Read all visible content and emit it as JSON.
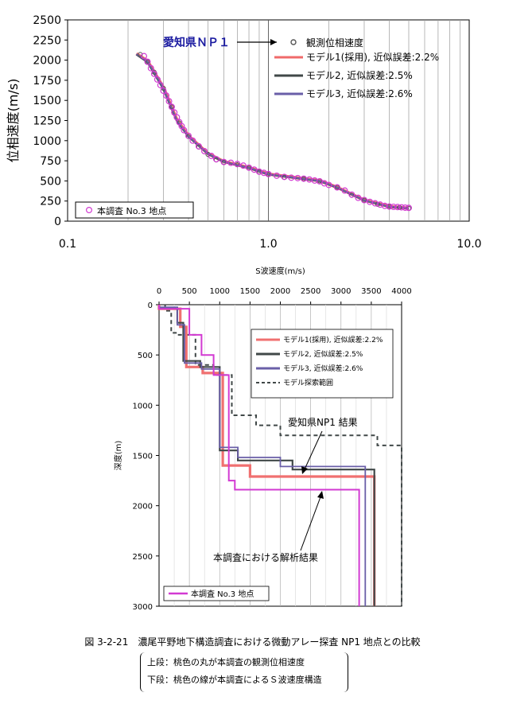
{
  "chart_data": [
    {
      "type": "scatter",
      "title": "",
      "xlabel": "",
      "ylabel": "位相速度(m/s)",
      "xscale": "log",
      "xlim": [
        0.1,
        10.0
      ],
      "ylim": [
        0,
        2500
      ],
      "x_ticks": [
        {
          "v": 0.1,
          "label": "0.1"
        },
        {
          "v": 1.0,
          "label": "1.0"
        },
        {
          "v": 10.0,
          "label": "10.0"
        }
      ],
      "y_ticks": [
        0,
        250,
        500,
        750,
        1000,
        1250,
        1500,
        1750,
        2000,
        2250,
        2500
      ],
      "grid": "vertical",
      "legend_position": "top-right",
      "series": [
        {
          "name": "観測位相速度",
          "kind": "points",
          "color": "#555555",
          "points": [
            [
              0.23,
              2070
            ],
            [
              0.25,
              1980
            ],
            [
              0.27,
              1850
            ],
            [
              0.3,
              1650
            ],
            [
              0.33,
              1420
            ],
            [
              0.36,
              1220
            ],
            [
              0.4,
              1050
            ],
            [
              0.45,
              920
            ],
            [
              0.5,
              830
            ],
            [
              0.55,
              760
            ],
            [
              0.6,
              730
            ],
            [
              0.7,
              700
            ],
            [
              0.8,
              660
            ],
            [
              0.9,
              610
            ],
            [
              1.0,
              580
            ],
            [
              1.2,
              545
            ],
            [
              1.5,
              525
            ],
            [
              1.8,
              500
            ],
            [
              2.2,
              420
            ],
            [
              2.6,
              320
            ],
            [
              3.0,
              260
            ],
            [
              3.5,
              210
            ],
            [
              4.0,
              180
            ],
            [
              4.5,
              170
            ],
            [
              5.0,
              160
            ]
          ]
        },
        {
          "name": "モデル1(採用), 近似誤差:2.2%",
          "kind": "line",
          "color": "#f06a6a",
          "points": [
            [
              0.22,
              2080
            ],
            [
              0.25,
              1990
            ],
            [
              0.3,
              1660
            ],
            [
              0.35,
              1260
            ],
            [
              0.4,
              1060
            ],
            [
              0.5,
              840
            ],
            [
              0.6,
              740
            ],
            [
              0.8,
              665
            ],
            [
              1.0,
              585
            ],
            [
              1.5,
              528
            ],
            [
              1.8,
              502
            ],
            [
              2.2,
              420
            ],
            [
              3.0,
              262
            ],
            [
              4.0,
              182
            ],
            [
              5.0,
              162
            ]
          ]
        },
        {
          "name": "モデル2, 近似誤差:2.5%",
          "kind": "line",
          "color": "#404848",
          "points": [
            [
              0.22,
              2070
            ],
            [
              0.25,
              1975
            ],
            [
              0.3,
              1640
            ],
            [
              0.35,
              1245
            ],
            [
              0.4,
              1048
            ],
            [
              0.5,
              835
            ],
            [
              0.6,
              736
            ],
            [
              0.8,
              660
            ],
            [
              1.0,
              580
            ],
            [
              1.5,
              524
            ],
            [
              1.8,
              498
            ],
            [
              2.2,
              416
            ],
            [
              3.0,
              258
            ],
            [
              4.0,
              178
            ],
            [
              5.0,
              158
            ]
          ]
        },
        {
          "name": "モデル3, 近似誤差:2.6%",
          "kind": "line",
          "color": "#6a5fa8",
          "points": [
            [
              0.22,
              2075
            ],
            [
              0.25,
              1985
            ],
            [
              0.3,
              1650
            ],
            [
              0.35,
              1252
            ],
            [
              0.4,
              1054
            ],
            [
              0.5,
              838
            ],
            [
              0.6,
              738
            ],
            [
              0.8,
              662
            ],
            [
              1.0,
              582
            ],
            [
              1.5,
              526
            ],
            [
              1.8,
              500
            ],
            [
              2.2,
              418
            ],
            [
              3.0,
              260
            ],
            [
              4.0,
              180
            ],
            [
              5.0,
              160
            ]
          ]
        },
        {
          "name": "本調査 No.3 地点",
          "kind": "points",
          "color": "#d23ad2",
          "points": [
            [
              0.24,
              2050
            ],
            [
              0.25,
              1980
            ],
            [
              0.26,
              1900
            ],
            [
              0.27,
              1830
            ],
            [
              0.28,
              1760
            ],
            [
              0.29,
              1690
            ],
            [
              0.3,
              1620
            ],
            [
              0.31,
              1560
            ],
            [
              0.32,
              1490
            ],
            [
              0.33,
              1420
            ],
            [
              0.34,
              1350
            ],
            [
              0.35,
              1290
            ],
            [
              0.36,
              1230
            ],
            [
              0.37,
              1180
            ],
            [
              0.38,
              1130
            ],
            [
              0.4,
              1060
            ],
            [
              0.42,
              1000
            ],
            [
              0.45,
              930
            ],
            [
              0.48,
              870
            ],
            [
              0.52,
              810
            ],
            [
              0.55,
              770
            ],
            [
              0.6,
              735
            ],
            [
              0.65,
              725
            ],
            [
              0.7,
              710
            ],
            [
              0.75,
              690
            ],
            [
              0.8,
              665
            ],
            [
              0.85,
              640
            ],
            [
              0.9,
              615
            ],
            [
              0.95,
              600
            ],
            [
              1.0,
              585
            ],
            [
              1.1,
              565
            ],
            [
              1.2,
              550
            ],
            [
              1.3,
              540
            ],
            [
              1.4,
              535
            ],
            [
              1.5,
              528
            ],
            [
              1.6,
              518
            ],
            [
              1.7,
              505
            ],
            [
              1.8,
              495
            ],
            [
              1.9,
              470
            ],
            [
              2.0,
              450
            ],
            [
              2.2,
              420
            ],
            [
              2.4,
              380
            ],
            [
              2.6,
              330
            ],
            [
              2.8,
              290
            ],
            [
              3.0,
              262
            ],
            [
              3.2,
              240
            ],
            [
              3.4,
              222
            ],
            [
              3.6,
              206
            ],
            [
              3.8,
              190
            ],
            [
              4.0,
              182
            ],
            [
              4.2,
              178
            ],
            [
              4.4,
              175
            ],
            [
              4.6,
              172
            ],
            [
              4.8,
              168
            ],
            [
              5.0,
              165
            ]
          ]
        }
      ],
      "annotations": [
        {
          "text": "愛知県ＮＰ１",
          "color": "#1a1aa0"
        }
      ]
    },
    {
      "type": "line",
      "title": "",
      "xlabel": "S波速度(m/s)",
      "ylabel": "深度(m)",
      "xlim": [
        0,
        4000
      ],
      "ylim": [
        0,
        3000
      ],
      "y_inverted": true,
      "x_ticks": [
        0,
        500,
        1000,
        1500,
        2000,
        2500,
        3000,
        3500,
        4000
      ],
      "y_ticks": [
        0,
        500,
        1000,
        1500,
        2000,
        2500,
        3000
      ],
      "grid": "vertical",
      "legend_position": "top-right",
      "series": [
        {
          "name": "モデル1(採用), 近似誤差:2.2%",
          "color": "#f07070",
          "steps": [
            [
              0,
              0
            ],
            [
              350,
              40
            ],
            [
              450,
              220
            ],
            [
              720,
              620
            ],
            [
              1050,
              680
            ],
            [
              1500,
              1600
            ],
            [
              3550,
              1710
            ]
          ]
        },
        {
          "name": "モデル2, 近似誤差:2.5%",
          "color": "#404848",
          "steps": [
            [
              0,
              0
            ],
            [
              300,
              30
            ],
            [
              400,
              180
            ],
            [
              680,
              560
            ],
            [
              1000,
              620
            ],
            [
              1300,
              1450
            ],
            [
              2200,
              1550
            ],
            [
              3550,
              1640
            ]
          ]
        },
        {
          "name": "モデル3, 近似誤差:2.6%",
          "color": "#6a5fa8",
          "steps": [
            [
              0,
              0
            ],
            [
              300,
              25
            ],
            [
              420,
              200
            ],
            [
              700,
              580
            ],
            [
              1000,
              640
            ],
            [
              1300,
              1420
            ],
            [
              2000,
              1520
            ],
            [
              3400,
              1610
            ]
          ]
        },
        {
          "name": "モデル探索範囲",
          "color": "#404848",
          "dashed": true,
          "steps": [
            [
              100,
              0
            ],
            [
              200,
              60
            ],
            [
              300,
              280
            ],
            [
              600,
              300
            ],
            [
              900,
              600
            ],
            [
              1200,
              700
            ],
            [
              1600,
              1100
            ],
            [
              2000,
              1200
            ],
            [
              3600,
              1300
            ],
            [
              4000,
              1400
            ]
          ]
        },
        {
          "name": "本調査 No.3 地点",
          "color": "#d23ad2",
          "steps": [
            [
              0,
              0
            ],
            [
              500,
              40
            ],
            [
              700,
              300
            ],
            [
              900,
              500
            ],
            [
              1150,
              700
            ],
            [
              1250,
              1750
            ],
            [
              3300,
              1840
            ]
          ]
        }
      ],
      "annotations": [
        {
          "text": "愛知県NP1 結果"
        },
        {
          "text": "本調査における解析結果"
        }
      ]
    }
  ],
  "top_xlabel_text": "S波速度(m/s)",
  "caption": "図 3-2-21　濃尾平野地下構造調査における微動アレー探査 NP1 地点との比較",
  "notes": [
    "上段：桃色の丸が本調査の観測位相速度",
    "下段：桃色の線が本調査によるＳ波速度構造"
  ]
}
